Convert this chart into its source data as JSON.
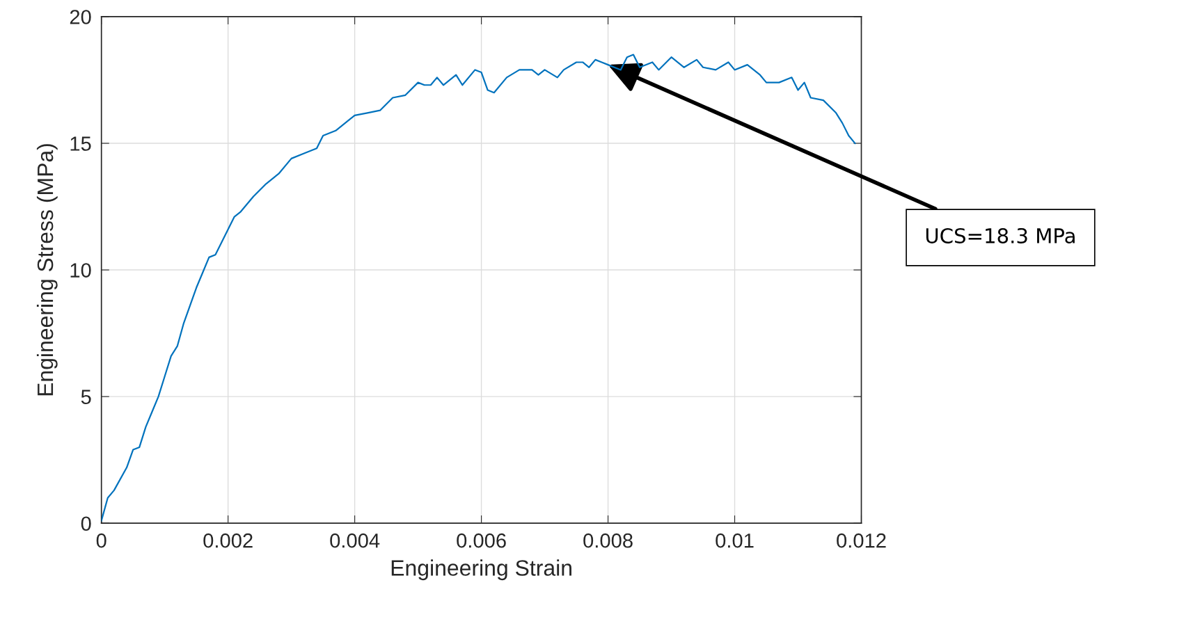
{
  "chart_data": {
    "type": "line",
    "xlabel": "Engineering Strain",
    "ylabel": "Engineering Stress (MPa)",
    "x": [
      0,
      0.0001,
      0.0002,
      0.0004,
      0.0005,
      0.0006,
      0.0007,
      0.0008,
      0.0009,
      0.001,
      0.0011,
      0.0012,
      0.0013,
      0.0014,
      0.0015,
      0.0016,
      0.0017,
      0.0018,
      0.0019,
      0.002,
      0.0021,
      0.0022,
      0.0024,
      0.0026,
      0.0028,
      0.003,
      0.0032,
      0.0034,
      0.0035,
      0.0037,
      0.0039,
      0.004,
      0.0042,
      0.0044,
      0.0046,
      0.0048,
      0.005,
      0.0051,
      0.0052,
      0.0053,
      0.0054,
      0.0056,
      0.0057,
      0.0059,
      0.006,
      0.0061,
      0.0062,
      0.0064,
      0.0066,
      0.0068,
      0.0069,
      0.007,
      0.0072,
      0.0073,
      0.0075,
      0.0076,
      0.0077,
      0.0078,
      0.0079,
      0.008,
      0.0082,
      0.0083,
      0.0084,
      0.0085,
      0.0087,
      0.0088,
      0.009,
      0.0092,
      0.0094,
      0.0095,
      0.0097,
      0.0099,
      0.01,
      0.0102,
      0.0104,
      0.0105,
      0.0107,
      0.0109,
      0.011,
      0.0111,
      0.0112,
      0.0114,
      0.0116,
      0.0117,
      0.0118,
      0.0119
    ],
    "series": [
      {
        "color": "#0072bd",
        "values": [
          0.1,
          1.0,
          1.3,
          2.2,
          2.9,
          3.0,
          3.8,
          4.4,
          5.0,
          5.8,
          6.6,
          7.0,
          7.9,
          8.6,
          9.3,
          9.9,
          10.5,
          10.6,
          11.1,
          11.6,
          12.1,
          12.3,
          12.9,
          13.4,
          13.8,
          14.4,
          14.6,
          14.8,
          15.3,
          15.5,
          15.9,
          16.1,
          16.2,
          16.3,
          16.8,
          16.9,
          17.4,
          17.3,
          17.3,
          17.6,
          17.3,
          17.7,
          17.3,
          17.9,
          17.8,
          17.1,
          17.0,
          17.6,
          17.9,
          17.9,
          17.7,
          17.9,
          17.6,
          17.9,
          18.2,
          18.2,
          18.0,
          18.3,
          18.2,
          18.1,
          17.9,
          18.4,
          18.5,
          18.0,
          18.2,
          17.9,
          18.4,
          18.0,
          18.3,
          18.0,
          17.9,
          18.2,
          17.9,
          18.1,
          17.7,
          17.4,
          17.4,
          17.6,
          17.1,
          17.4,
          16.8,
          16.7,
          16.2,
          15.8,
          15.3,
          15.0
        ]
      }
    ],
    "xlim": [
      0,
      0.012
    ],
    "ylim": [
      0,
      20
    ],
    "xticks": [
      0,
      0.002,
      0.004,
      0.006,
      0.008,
      0.01,
      0.012
    ],
    "yticks": [
      0,
      5,
      10,
      15,
      20
    ],
    "grid": true,
    "legend": false,
    "annotations": [
      {
        "text": "UCS=18.3 MPa",
        "x": 0.008,
        "y": 18.1
      }
    ]
  }
}
